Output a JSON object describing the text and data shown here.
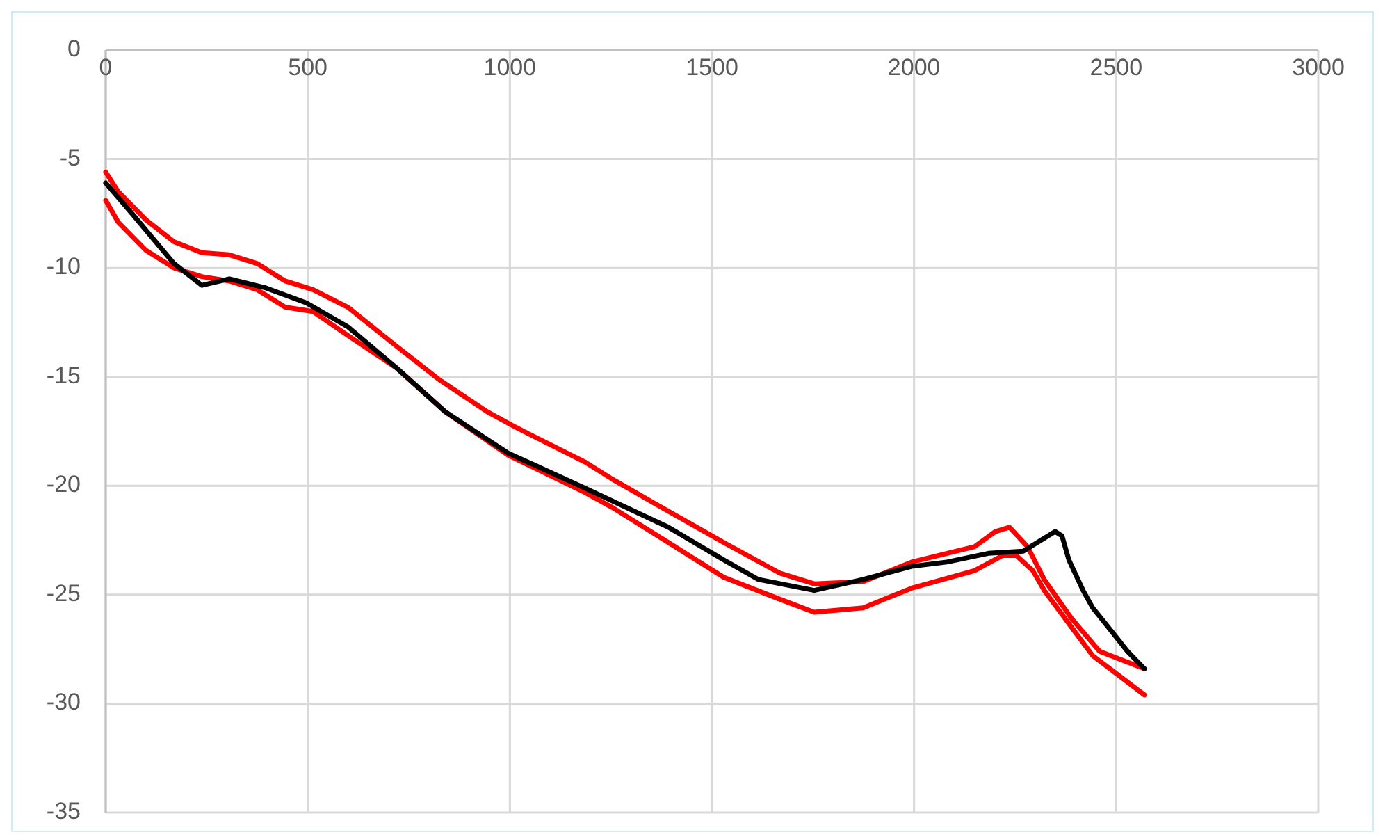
{
  "chart_data": {
    "type": "line",
    "xlim": [
      0,
      3000
    ],
    "xticks": [
      0,
      500,
      1000,
      1500,
      2000,
      2500,
      3000
    ],
    "ylim": [
      -35,
      0
    ],
    "yticks": [
      -35,
      -30,
      -25,
      -20,
      -15,
      -10,
      -5,
      0
    ],
    "grid": true,
    "marker": "none",
    "line_style": "solid",
    "series": [
      {
        "color": "#ff0000",
        "x": [
          0,
          31,
          100,
          169,
          238,
          306,
          375,
          444,
          513,
          599,
          720,
          823,
          944,
          1013,
          1185,
          1254,
          1357,
          1529,
          1667,
          1753,
          1874,
          1994,
          2149,
          2201,
          2236,
          2281,
          2322,
          2390,
          2459,
          2570
        ],
        "values": [
          -5.6,
          -6.5,
          -7.8,
          -8.8,
          -9.3,
          -9.4,
          -9.8,
          -10.6,
          -11.0,
          -11.8,
          -13.6,
          -15.1,
          -16.6,
          -17.3,
          -18.9,
          -19.7,
          -20.8,
          -22.6,
          -24.0,
          -24.5,
          -24.4,
          -23.5,
          -22.8,
          -22.1,
          -21.9,
          -22.8,
          -24.3,
          -26.1,
          -27.6,
          -28.4
        ]
      },
      {
        "color": "#ff0000",
        "x": [
          0,
          31,
          100,
          169,
          238,
          306,
          375,
          444,
          513,
          599,
          720,
          840,
          996,
          1185,
          1254,
          1392,
          1529,
          1667,
          1753,
          1874,
          1994,
          2149,
          2219,
          2253,
          2294,
          2322,
          2390,
          2442,
          2570
        ],
        "values": [
          -6.9,
          -7.9,
          -9.2,
          -10.0,
          -10.4,
          -10.6,
          -11.0,
          -11.8,
          -12.0,
          -13.1,
          -14.6,
          -16.6,
          -18.6,
          -20.3,
          -21.0,
          -22.6,
          -24.2,
          -25.2,
          -25.8,
          -25.6,
          -24.7,
          -23.9,
          -23.2,
          -23.2,
          -23.9,
          -24.8,
          -26.5,
          -27.8,
          -29.6
        ]
      },
      {
        "color": "#000000",
        "x": [
          0,
          65,
          169,
          238,
          306,
          393,
          496,
          599,
          720,
          840,
          996,
          1185,
          1392,
          1529,
          1615,
          1753,
          1874,
          1994,
          2081,
          2184,
          2270,
          2349,
          2366,
          2383,
          2418,
          2442,
          2494,
          2528,
          2570
        ],
        "values": [
          -6.1,
          -7.5,
          -9.8,
          -10.8,
          -10.5,
          -10.9,
          -11.6,
          -12.7,
          -14.6,
          -16.6,
          -18.5,
          -20.1,
          -21.9,
          -23.4,
          -24.3,
          -24.8,
          -24.3,
          -23.7,
          -23.5,
          -23.1,
          -23.0,
          -22.1,
          -22.3,
          -23.4,
          -24.8,
          -25.6,
          -26.8,
          -27.6,
          -28.4
        ]
      }
    ]
  }
}
